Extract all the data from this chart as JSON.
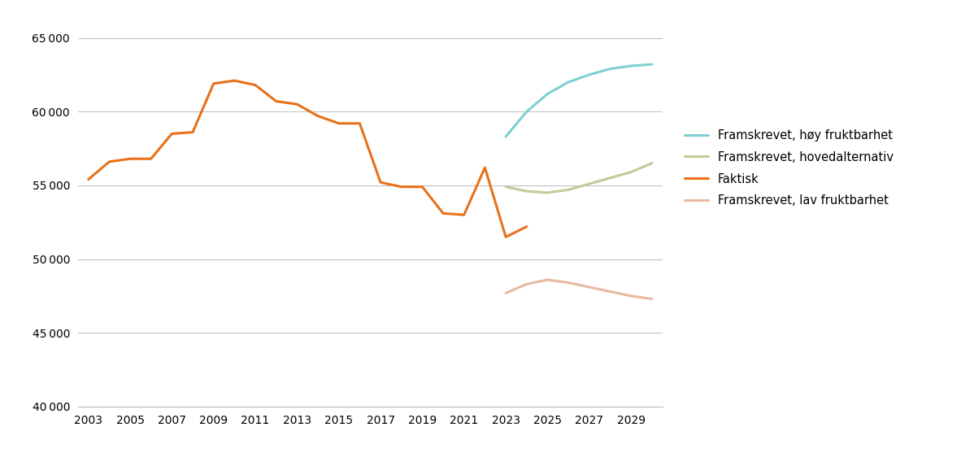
{
  "faktisk": {
    "years": [
      2003,
      2004,
      2005,
      2006,
      2007,
      2008,
      2009,
      2010,
      2011,
      2012,
      2013,
      2014,
      2015,
      2016,
      2017,
      2018,
      2019,
      2020,
      2021,
      2022,
      2023,
      2024
    ],
    "values": [
      55400,
      56600,
      56800,
      56800,
      58500,
      58600,
      61900,
      62100,
      61800,
      60700,
      60500,
      59700,
      59200,
      59200,
      55200,
      54900,
      54900,
      53100,
      53000,
      56200,
      51500,
      52200
    ]
  },
  "hoy": {
    "years": [
      2023,
      2024,
      2025,
      2026,
      2027,
      2028,
      2029,
      2030
    ],
    "values": [
      58300,
      60000,
      61200,
      62000,
      62500,
      62900,
      63100,
      63200
    ]
  },
  "hoved": {
    "years": [
      2023,
      2024,
      2025,
      2026,
      2027,
      2028,
      2029,
      2030
    ],
    "values": [
      54900,
      54600,
      54500,
      54700,
      55100,
      55500,
      55900,
      56500
    ]
  },
  "lav": {
    "years": [
      2023,
      2024,
      2025,
      2026,
      2027,
      2028,
      2029,
      2030
    ],
    "values": [
      47700,
      48300,
      48600,
      48400,
      48100,
      47800,
      47500,
      47300
    ]
  },
  "color_faktisk": "#E8711A",
  "color_hoy": "#7ECFD4",
  "color_hoved": "#C8C89A",
  "color_lav": "#E8B8A0",
  "label_hoy": "Framskrevet, høy fruktbarhet",
  "label_hoved": "Framskrevet, hovedalternativ",
  "label_faktisk": "Faktisk",
  "label_lav": "Framskrevet, lav fruktbarhet",
  "xlim_min": 2002.5,
  "xlim_max": 2030.5,
  "ylim": [
    40000,
    66000
  ],
  "yticks": [
    40000,
    45000,
    50000,
    55000,
    60000,
    65000
  ],
  "xticks": [
    2003,
    2005,
    2007,
    2009,
    2011,
    2013,
    2015,
    2017,
    2019,
    2021,
    2023,
    2025,
    2027,
    2029
  ],
  "linewidth": 2.2
}
